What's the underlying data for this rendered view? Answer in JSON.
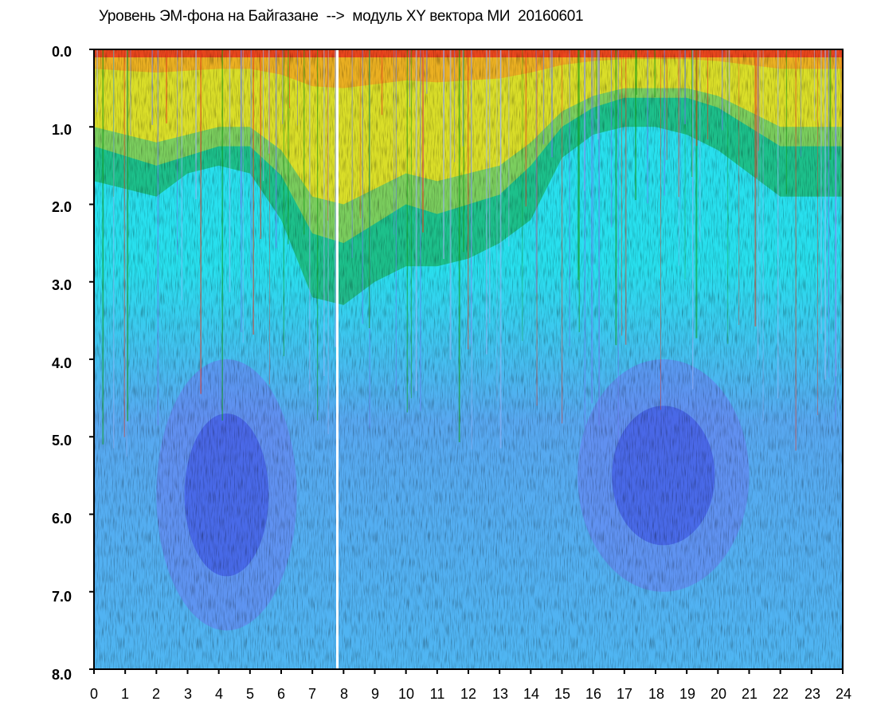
{
  "chart_data": {
    "type": "heatmap",
    "title": "Уровень ЭМ-фона на Байгазане  -->  модуль XY вектора МИ  20160601",
    "xlabel": "",
    "ylabel": "",
    "x_ticks": [
      "0",
      "1",
      "2",
      "3",
      "4",
      "5",
      "6",
      "7",
      "8",
      "9",
      "10",
      "11",
      "12",
      "13",
      "14",
      "15",
      "16",
      "17",
      "18",
      "19",
      "20",
      "21",
      "22",
      "23",
      "24"
    ],
    "y_ticks": [
      "0.0",
      "1.0",
      "2.0",
      "3.0",
      "4.0",
      "5.0",
      "6.0",
      "7.0",
      "8.0"
    ],
    "xlim": [
      0,
      24
    ],
    "ylim": [
      0,
      8
    ],
    "y_inverted": true,
    "grid": false,
    "colormap": [
      "#2020d8",
      "#6a7cf0",
      "#28e0ee",
      "#0f9a12",
      "#f2e21c",
      "#e8341c"
    ],
    "warm_boundary": {
      "x": [
        0,
        1,
        2,
        3,
        4,
        5,
        6,
        7,
        8,
        9,
        10,
        11,
        12,
        13,
        14,
        15,
        16,
        17,
        18,
        19,
        20,
        21,
        22,
        23,
        24
      ],
      "yellow_depth": [
        1.0,
        1.1,
        1.2,
        1.1,
        1.0,
        1.0,
        1.3,
        1.9,
        2.0,
        1.8,
        1.6,
        1.7,
        1.6,
        1.5,
        1.2,
        0.8,
        0.6,
        0.5,
        0.5,
        0.5,
        0.6,
        0.8,
        1.0,
        1.0,
        1.0
      ],
      "green_depth": [
        1.7,
        1.8,
        1.9,
        1.6,
        1.5,
        1.6,
        2.2,
        3.2,
        3.3,
        3.0,
        2.8,
        2.8,
        2.7,
        2.5,
        2.2,
        1.4,
        1.1,
        1.0,
        1.0,
        1.1,
        1.3,
        1.6,
        1.9,
        1.9,
        1.9
      ]
    },
    "dense_blue_zones": [
      {
        "x": [
          2.0,
          6.5
        ],
        "y": [
          4.0,
          7.5
        ]
      },
      {
        "x": [
          15.5,
          21.0
        ],
        "y": [
          4.0,
          7.0
        ]
      }
    ],
    "gaps_x": [
      7.8
    ]
  }
}
